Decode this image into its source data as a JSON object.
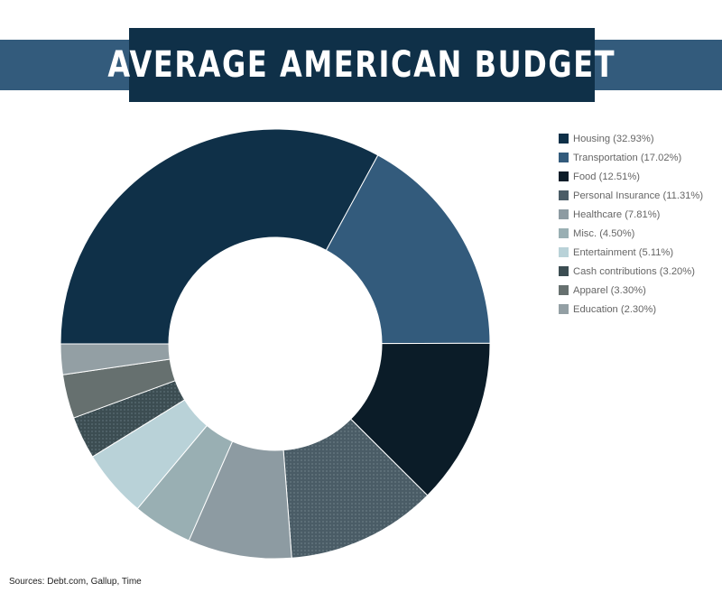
{
  "title": "AVERAGE AMERICAN BUDGET",
  "source": "Sources: Debt.com, Gallup, Time",
  "colors": {
    "banner": "#335b7c",
    "title_box": "#0f3048",
    "background": "#ffffff"
  },
  "chart_data": {
    "type": "pie",
    "subtype": "donut",
    "title": "AVERAGE AMERICAN BUDGET",
    "legend_position": "right",
    "slices": [
      {
        "label": "Housing (32.93%)",
        "value": 32.93,
        "color": "#0f3048",
        "pattern": "none"
      },
      {
        "label": "Transportation (17.02%)",
        "value": 17.02,
        "color": "#335b7c",
        "pattern": "none"
      },
      {
        "label": "Food (12.51%)",
        "value": 12.51,
        "color": "#0b1c28",
        "pattern": "none"
      },
      {
        "label": "Personal Insurance (11.31%)",
        "value": 11.31,
        "color": "#4a5c66",
        "pattern": "dots"
      },
      {
        "label": "Healthcare (7.81%)",
        "value": 7.81,
        "color": "#8d9ba2",
        "pattern": "none"
      },
      {
        "label": "Misc. (4.50%)",
        "value": 4.5,
        "color": "#99afb3",
        "pattern": "none"
      },
      {
        "label": "Entertainment (5.11%)",
        "value": 5.11,
        "color": "#b9d2d8",
        "pattern": "none"
      },
      {
        "label": "Cash contributions (3.20%)",
        "value": 3.2,
        "color": "#3c4d52",
        "pattern": "dots"
      },
      {
        "label": "Apparel (3.30%)",
        "value": 3.3,
        "color": "#66706f",
        "pattern": "none"
      },
      {
        "label": "Education (2.30%)",
        "value": 2.3,
        "color": "#939fa4",
        "pattern": "none"
      }
    ]
  }
}
